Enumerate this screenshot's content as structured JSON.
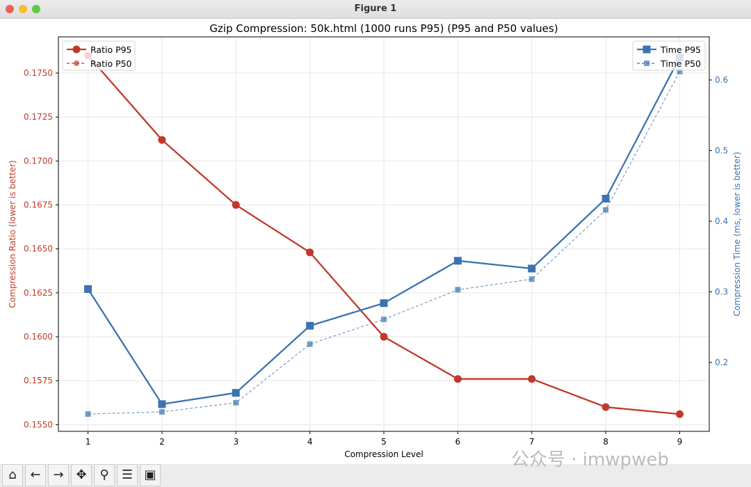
{
  "window": {
    "title": "Figure 1"
  },
  "toolbar": {
    "items": [
      {
        "name": "home-icon",
        "glyph": "⌂"
      },
      {
        "name": "back-icon",
        "glyph": "←"
      },
      {
        "name": "forward-icon",
        "glyph": "→"
      },
      {
        "name": "pan-icon",
        "glyph": "✥"
      },
      {
        "name": "zoom-icon",
        "glyph": "⚲"
      },
      {
        "name": "configure-icon",
        "glyph": "☰"
      },
      {
        "name": "save-icon",
        "glyph": "▣"
      }
    ]
  },
  "watermark": "公众号 · imwpweb",
  "chart_data": {
    "type": "line",
    "title": "Gzip Compression: 50k.html (1000 runs P95) (P95 and P50 values)",
    "xlabel": "Compression Level",
    "ylabel_left": "Compression Ratio (lower is better)",
    "ylabel_right": "Compression Time (ms, lower is better)",
    "x": [
      1,
      2,
      3,
      4,
      5,
      6,
      7,
      8,
      9
    ],
    "xlim": [
      0.6,
      9.4
    ],
    "ylim_left": [
      0.15462,
      0.17706
    ],
    "ylim_right": [
      0.1025,
      0.661
    ],
    "yticks_left": [
      "0.1550",
      "0.1575",
      "0.1600",
      "0.1625",
      "0.1650",
      "0.1675",
      "0.1700",
      "0.1725",
      "0.1750"
    ],
    "yticks_right": [
      "0.2",
      "0.3",
      "0.4",
      "0.5",
      "0.6"
    ],
    "grid": true,
    "colors": {
      "ratio": "#c0392b",
      "time": "#3a73b0"
    },
    "series": [
      {
        "name": "Ratio P95",
        "axis": "left",
        "style": "solid-circle",
        "values": [
          0.176,
          0.1712,
          0.1675,
          0.1648,
          0.16,
          0.1576,
          0.1576,
          0.156,
          0.1556
        ]
      },
      {
        "name": "Ratio P50",
        "axis": "left",
        "style": "dashed-circle",
        "values": [
          0.176,
          0.1712,
          0.1675,
          0.1648,
          0.16,
          0.1576,
          0.1576,
          0.156,
          0.1556
        ]
      },
      {
        "name": "Time P95",
        "axis": "right",
        "style": "solid-square",
        "values": [
          0.304,
          0.141,
          0.157,
          0.252,
          0.284,
          0.344,
          0.333,
          0.432,
          0.632
        ]
      },
      {
        "name": "Time P50",
        "axis": "right",
        "style": "dashed-square",
        "values": [
          0.127,
          0.13,
          0.143,
          0.226,
          0.261,
          0.303,
          0.318,
          0.416,
          0.612
        ]
      }
    ],
    "legend_left": "upper-left",
    "legend_right": "upper-right"
  }
}
